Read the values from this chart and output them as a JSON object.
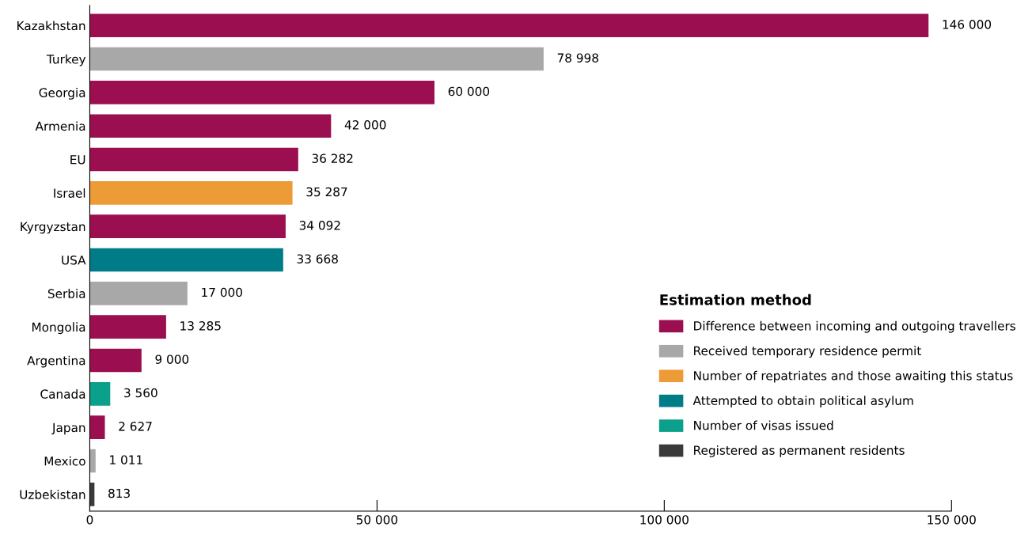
{
  "chart_data": {
    "type": "bar",
    "orientation": "horizontal",
    "legend_title": "Estimation method",
    "legend": "right",
    "grid": false,
    "categories": [
      "Kazakhstan",
      "Turkey",
      "Georgia",
      "Armenia",
      "EU",
      "Israel",
      "Kyrgyzstan",
      "USA",
      "Serbia",
      "Mongolia",
      "Argentina",
      "Canada",
      "Japan",
      "Mexico",
      "Uzbekistan"
    ],
    "xlim": [
      0,
      150000
    ],
    "xticks": [
      0,
      {
        "value": 50000,
        "label": "50 000"
      },
      {
        "value": 100000,
        "label": "100 000"
      },
      {
        "value": 150000,
        "label": "150 000"
      }
    ],
    "series": [
      {
        "name": "Difference between incoming and outgoing travellers",
        "color": "#9b0e4f",
        "values": [
          146000,
          null,
          60000,
          42000,
          36282,
          null,
          34092,
          null,
          null,
          13285,
          9000,
          null,
          2627,
          null,
          null
        ],
        "value_labels": [
          "146 000",
          null,
          "60 000",
          "42 000",
          "36 282",
          null,
          "34 092",
          null,
          null,
          "13 285",
          "9 000",
          null,
          "2 627",
          null,
          null
        ]
      },
      {
        "name": "Received temporary residence permit",
        "color": "#a8a8a8",
        "values": [
          null,
          78998,
          null,
          null,
          null,
          null,
          null,
          null,
          17000,
          null,
          null,
          null,
          null,
          1011,
          null
        ],
        "value_labels": [
          null,
          "78 998",
          null,
          null,
          null,
          null,
          null,
          null,
          "17 000",
          null,
          null,
          null,
          null,
          "1 011",
          null
        ]
      },
      {
        "name": "Number of repatriates and those awaiting this status",
        "color": "#ec9b37",
        "values": [
          null,
          null,
          null,
          null,
          null,
          35287,
          null,
          null,
          null,
          null,
          null,
          null,
          null,
          null,
          null
        ],
        "value_labels": [
          null,
          null,
          null,
          null,
          null,
          "35 287",
          null,
          null,
          null,
          null,
          null,
          null,
          null,
          null,
          null
        ]
      },
      {
        "name": "Attempted to obtain political asylum",
        "color": "#007c89",
        "values": [
          null,
          null,
          null,
          null,
          null,
          null,
          null,
          33668,
          null,
          null,
          null,
          null,
          null,
          null,
          null
        ],
        "value_labels": [
          null,
          null,
          null,
          null,
          null,
          null,
          null,
          "33 668",
          null,
          null,
          null,
          null,
          null,
          null,
          null
        ]
      },
      {
        "name": "Number of visas issued",
        "color": "#0aa08a",
        "values": [
          null,
          null,
          null,
          null,
          null,
          null,
          null,
          null,
          null,
          null,
          null,
          3560,
          null,
          null,
          null
        ],
        "value_labels": [
          null,
          null,
          null,
          null,
          null,
          null,
          null,
          null,
          null,
          null,
          null,
          "3 560",
          null,
          null,
          null
        ]
      },
      {
        "name": "Registered as permanent residents",
        "color": "#3a3a3a",
        "values": [
          null,
          null,
          null,
          null,
          null,
          null,
          null,
          null,
          null,
          null,
          null,
          null,
          null,
          null,
          813
        ],
        "value_labels": [
          null,
          null,
          null,
          null,
          null,
          null,
          null,
          null,
          null,
          null,
          null,
          null,
          null,
          null,
          "813"
        ]
      }
    ]
  }
}
